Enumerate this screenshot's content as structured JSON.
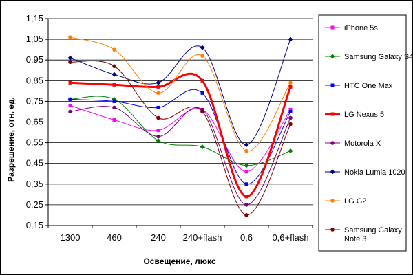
{
  "chart_data": {
    "type": "line",
    "xlabel": "Освещение, люкс",
    "ylabel": "Разрешение, отн. ед.",
    "categories": [
      "1300",
      "460",
      "240",
      "240+flash",
      "0,6",
      "0,6+flash"
    ],
    "ylim": [
      0.15,
      1.15
    ],
    "yticks": [
      "0,15",
      "0,25",
      "0,35",
      "0,45",
      "0,55",
      "0,65",
      "0,75",
      "0,85",
      "0,95",
      "1,05",
      "1,15"
    ],
    "grid": "horizontal",
    "legend_position": "right",
    "series": [
      {
        "name": "iPhone 5s",
        "color": "#ff00ff",
        "marker": "square",
        "width": 1,
        "values": [
          0.73,
          0.66,
          0.61,
          0.71,
          0.41,
          0.71
        ]
      },
      {
        "name": "Samsung Galaxy S4",
        "color": "#008000",
        "marker": "diamond",
        "width": 1,
        "values": [
          0.76,
          0.76,
          0.56,
          0.53,
          0.44,
          0.51
        ]
      },
      {
        "name": "HTC One Max",
        "color": "#0000ff",
        "marker": "square",
        "width": 1,
        "values": [
          0.76,
          0.75,
          0.72,
          0.79,
          0.35,
          0.7
        ]
      },
      {
        "name": "LG Nexus 5",
        "color": "#ff0000",
        "marker": "square",
        "width": 3,
        "values": [
          0.84,
          0.83,
          0.82,
          0.85,
          0.29,
          0.82
        ]
      },
      {
        "name": "Motorola X",
        "color": "#800080",
        "marker": "circle",
        "width": 1,
        "values": [
          0.7,
          0.72,
          0.58,
          0.71,
          0.25,
          0.67
        ]
      },
      {
        "name": "Nokia Lumia 1020",
        "color": "#000080",
        "marker": "diamond",
        "width": 1,
        "values": [
          0.96,
          0.88,
          0.84,
          1.01,
          0.54,
          1.05
        ]
      },
      {
        "name": "LG G2",
        "color": "#ff8000",
        "marker": "circle",
        "width": 1,
        "values": [
          1.06,
          1.0,
          0.79,
          0.97,
          0.51,
          0.84
        ]
      },
      {
        "name": "Samsung Galaxy Note 3",
        "color": "#800000",
        "marker": "circle",
        "width": 1,
        "values": [
          0.94,
          0.92,
          0.67,
          0.7,
          0.2,
          0.64
        ]
      }
    ]
  }
}
